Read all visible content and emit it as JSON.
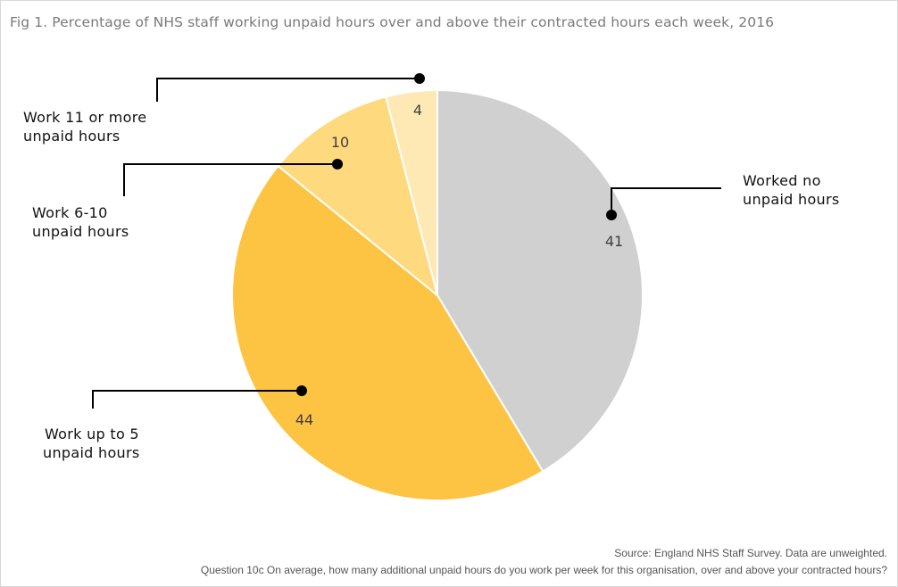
{
  "title": "Fig 1. Percentage of NHS staff working unpaid hours over and above their contracted hours each week, 2016",
  "chart_data": {
    "type": "pie",
    "title": "Fig 1. Percentage of NHS staff working unpaid hours over and above their contracted hours each week, 2016",
    "slices": [
      {
        "label": "Worked no unpaid hours",
        "label_lines": [
          "Worked no",
          "unpaid hours"
        ],
        "value": 41,
        "color": "#d0d0d0"
      },
      {
        "label": "Work up to 5 unpaid hours",
        "label_lines": [
          "Work up to 5",
          "unpaid hours"
        ],
        "value": 44,
        "color": "#fdc444"
      },
      {
        "label": "Work 6-10 unpaid hours",
        "label_lines": [
          "Work 6-10",
          "unpaid hours"
        ],
        "value": 10,
        "color": "#fed97d"
      },
      {
        "label": "Work 11 or more unpaid hours",
        "label_lines": [
          "Work 11 or more",
          "unpaid hours"
        ],
        "value": 4,
        "color": "#fee9b4"
      }
    ],
    "start": "12 o'clock",
    "direction": "clockwise"
  },
  "footnote": {
    "source": "Source: England NHS Staff Survey. Data are unweighted.",
    "question": "Question 10c On average, how many additional unpaid hours do you work per week for this organisation, over and above your contracted hours?"
  }
}
